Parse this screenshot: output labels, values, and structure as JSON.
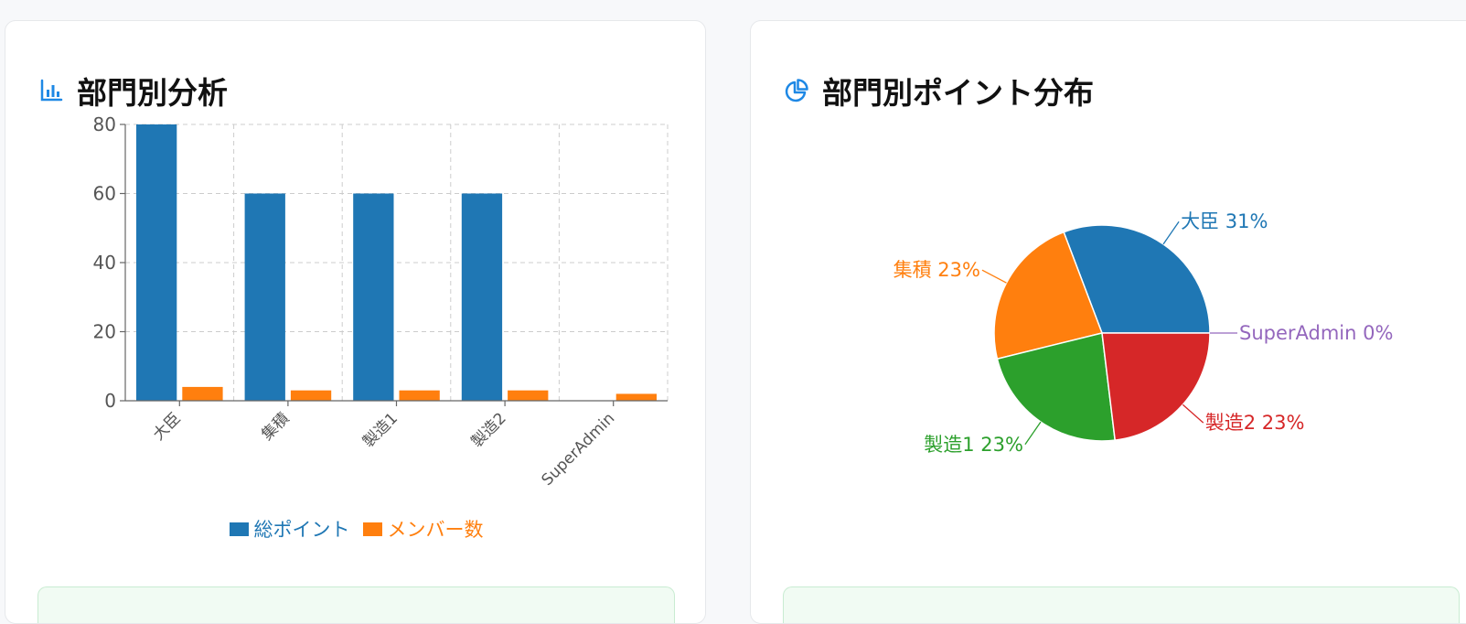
{
  "bar_panel": {
    "title": "部門別分析",
    "icon": "bar-chart-icon"
  },
  "pie_panel": {
    "title": "部門別ポイント分布",
    "icon": "pie-chart-icon"
  },
  "colors": {
    "blue": "#1f77b4",
    "orange": "#ff7f0e",
    "green": "#2ca02c",
    "red": "#d62728",
    "purple": "#9467bd",
    "icon_blue": "#1e88e5"
  },
  "chart_data": [
    {
      "type": "bar",
      "categories": [
        "大臣",
        "集積",
        "製造1",
        "製造2",
        "SuperAdmin"
      ],
      "series": [
        {
          "name": "総ポイント",
          "values": [
            80,
            60,
            60,
            60,
            0
          ],
          "color": "#1f77b4"
        },
        {
          "name": "メンバー数",
          "values": [
            4,
            3,
            3,
            3,
            2
          ],
          "color": "#ff7f0e"
        }
      ],
      "yticks": [
        0,
        20,
        40,
        60,
        80
      ],
      "ylim": [
        0,
        80
      ],
      "grid": true,
      "legend": "bottom"
    },
    {
      "type": "pie",
      "slices": [
        {
          "label": "大臣",
          "value": 80,
          "percent_label": "31%",
          "color": "#1f77b4"
        },
        {
          "label": "集積",
          "value": 60,
          "percent_label": "23%",
          "color": "#ff7f0e"
        },
        {
          "label": "製造1",
          "value": 60,
          "percent_label": "23%",
          "color": "#2ca02c"
        },
        {
          "label": "製造2",
          "value": 60,
          "percent_label": "23%",
          "color": "#d62728"
        },
        {
          "label": "SuperAdmin",
          "value": 0,
          "percent_label": "0%",
          "color": "#9467bd"
        }
      ]
    }
  ]
}
